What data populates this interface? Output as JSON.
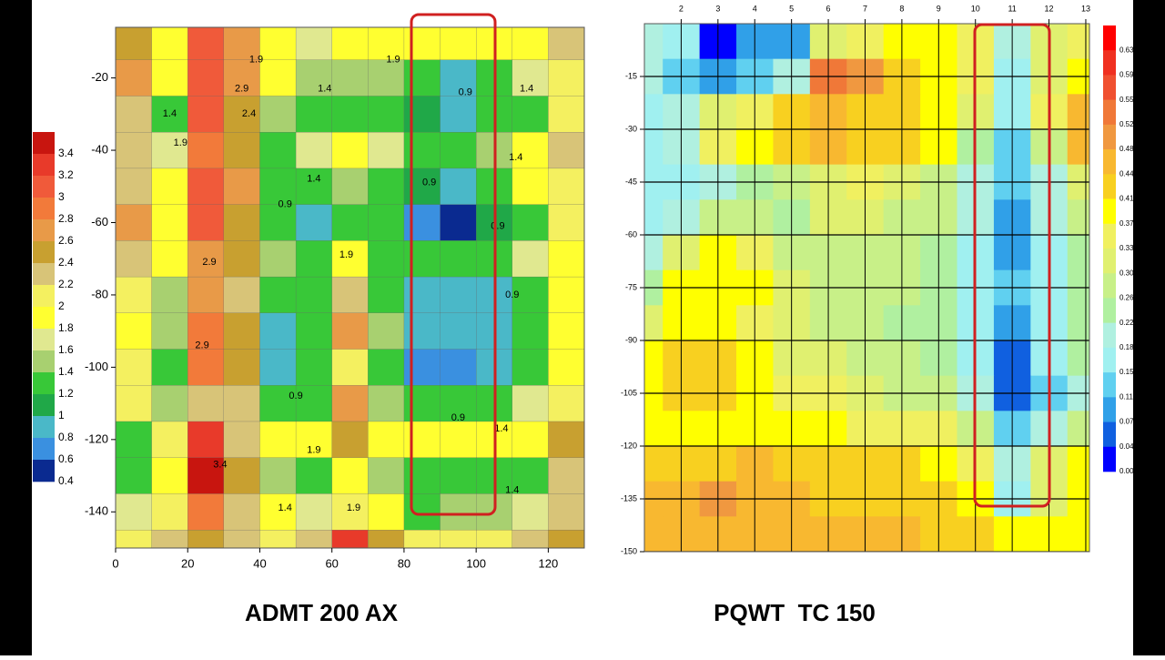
{
  "chart_data": [
    {
      "type": "contour",
      "title": "ADMT 200 AX",
      "xlim": [
        0,
        130
      ],
      "ylim": [
        -150,
        -6
      ],
      "xticks": [
        0,
        20,
        40,
        60,
        80,
        100,
        120
      ],
      "yticks": [
        -20,
        -40,
        -60,
        -80,
        -100,
        -120,
        -140
      ],
      "x": [
        5,
        15,
        25,
        35,
        45,
        55,
        65,
        75,
        85,
        95,
        105,
        115,
        125
      ],
      "y": [
        -10,
        -20,
        -30,
        -40,
        -50,
        -60,
        -70,
        -80,
        -90,
        -100,
        -110,
        -120,
        -130,
        -140,
        -150
      ],
      "z": [
        [
          2.4,
          1.9,
          3.0,
          2.6,
          1.9,
          1.7,
          1.9,
          1.9,
          1.9,
          1.8,
          1.9,
          1.8,
          2.2
        ],
        [
          2.6,
          1.8,
          3.1,
          2.6,
          1.8,
          1.4,
          1.4,
          1.4,
          1.2,
          0.8,
          1.3,
          1.6,
          2.0
        ],
        [
          2.2,
          1.3,
          3.0,
          2.5,
          1.4,
          1.2,
          1.2,
          1.2,
          1.0,
          0.9,
          1.3,
          1.3,
          2.0
        ],
        [
          2.2,
          1.6,
          2.9,
          2.4,
          1.3,
          1.6,
          1.9,
          1.6,
          1.3,
          1.2,
          1.4,
          1.9,
          2.3
        ],
        [
          2.3,
          1.8,
          3.0,
          2.6,
          1.2,
          1.3,
          1.5,
          1.3,
          1.0,
          0.9,
          1.2,
          1.8,
          2.1
        ],
        [
          2.6,
          1.9,
          3.1,
          2.5,
          1.2,
          0.8,
          1.3,
          1.2,
          0.6,
          0.5,
          1.0,
          1.3,
          2.0
        ],
        [
          2.2,
          1.8,
          2.6,
          2.4,
          1.4,
          1.3,
          1.9,
          1.3,
          1.2,
          1.2,
          1.2,
          1.6,
          1.9
        ],
        [
          2.0,
          1.5,
          2.6,
          2.2,
          1.2,
          1.2,
          2.2,
          1.3,
          0.9,
          0.8,
          0.9,
          1.3,
          1.8
        ],
        [
          1.9,
          1.4,
          2.9,
          2.5,
          0.9,
          1.3,
          2.7,
          1.4,
          0.9,
          0.8,
          0.8,
          1.2,
          1.9
        ],
        [
          2.0,
          1.3,
          2.8,
          2.4,
          0.8,
          1.2,
          2.0,
          1.3,
          0.7,
          0.6,
          0.9,
          1.3,
          1.9
        ],
        [
          2.1,
          1.5,
          2.3,
          2.2,
          1.2,
          1.3,
          2.7,
          1.4,
          1.2,
          1.2,
          1.3,
          1.6,
          2.0
        ],
        [
          1.3,
          2.0,
          3.3,
          2.3,
          1.9,
          1.9,
          2.4,
          1.9,
          1.8,
          1.8,
          1.8,
          1.9,
          2.5
        ],
        [
          1.2,
          1.9,
          3.4,
          2.4,
          1.5,
          1.3,
          1.8,
          1.4,
          1.3,
          1.3,
          1.3,
          1.2,
          2.2
        ],
        [
          1.7,
          2.0,
          2.9,
          2.2,
          1.8,
          1.6,
          2.0,
          1.8,
          1.3,
          1.4,
          1.4,
          1.6,
          2.3
        ],
        [
          2.0,
          2.2,
          2.5,
          2.3,
          2.0,
          2.2,
          3.3,
          2.5,
          2.0,
          2.0,
          2.0,
          2.2,
          2.4
        ]
      ],
      "colorbar": {
        "ticks": [
          3.4,
          3.2,
          3,
          2.8,
          2.6,
          2.4,
          2.2,
          2,
          1.8,
          1.6,
          1.4,
          1.2,
          1,
          0.8,
          0.6,
          0.4
        ],
        "colors": [
          "#c8150f",
          "#e83a2a",
          "#f05a3a",
          "#f27a3a",
          "#e89a48",
          "#c8a030",
          "#d8c478",
          "#f4f060",
          "#ffff30",
          "#e0e890",
          "#a8d070",
          "#38c838",
          "#20a848",
          "#4ab8c8",
          "#3a90e0",
          "#0a2a90"
        ]
      },
      "annotations": [
        {
          "text": "1.9",
          "x": 39,
          "y": -15
        },
        {
          "text": "1.9",
          "x": 77,
          "y": -15
        },
        {
          "text": "1.4",
          "x": 58,
          "y": -23
        },
        {
          "text": "0.9",
          "x": 97,
          "y": -24
        },
        {
          "text": "1.4",
          "x": 114,
          "y": -23
        },
        {
          "text": "1.4",
          "x": 15,
          "y": -30
        },
        {
          "text": "1.9",
          "x": 18,
          "y": -38
        },
        {
          "text": "2.9",
          "x": 35,
          "y": -23
        },
        {
          "text": "2.4",
          "x": 37,
          "y": -30
        },
        {
          "text": "1.4",
          "x": 111,
          "y": -42
        },
        {
          "text": "1.4",
          "x": 55,
          "y": -48
        },
        {
          "text": "0.9",
          "x": 87,
          "y": -49
        },
        {
          "text": "0.9",
          "x": 47,
          "y": -55
        },
        {
          "text": "0.9",
          "x": 106,
          "y": -61
        },
        {
          "text": "2.9",
          "x": 26,
          "y": -71
        },
        {
          "text": "0.9",
          "x": 110,
          "y": -80
        },
        {
          "text": "1.9",
          "x": 64,
          "y": -69
        },
        {
          "text": "2.9",
          "x": 24,
          "y": -94
        },
        {
          "text": "0.9",
          "x": 50,
          "y": -108
        },
        {
          "text": "0.9",
          "x": 95,
          "y": -114
        },
        {
          "text": "1.4",
          "x": 107,
          "y": -117
        },
        {
          "text": "1.9",
          "x": 55,
          "y": -123
        },
        {
          "text": "1.4",
          "x": 47,
          "y": -139
        },
        {
          "text": "1.9",
          "x": 66,
          "y": -139
        },
        {
          "text": "1.4",
          "x": 110,
          "y": -134
        },
        {
          "text": "3.4",
          "x": 29,
          "y": -127
        }
      ]
    },
    {
      "type": "contour",
      "title": "PQWT  TC 150",
      "xlim": [
        1,
        13.1
      ],
      "ylim": [
        -150,
        0
      ],
      "grid": true,
      "xticks": [
        2,
        3,
        4,
        5,
        6,
        7,
        8,
        9,
        10,
        11,
        12,
        13
      ],
      "yticks": [
        -15,
        -30,
        -45,
        -60,
        -75,
        -90,
        -105,
        -120,
        -135,
        -150
      ],
      "x": [
        1,
        2,
        3,
        4,
        5,
        6,
        7,
        8,
        9,
        10,
        11,
        12,
        13
      ],
      "y": [
        -5,
        -15,
        -25,
        -35,
        -45,
        -55,
        -65,
        -75,
        -85,
        -95,
        -105,
        -115,
        -125,
        -135,
        -145
      ],
      "z": [
        [
          0.18,
          0.15,
          0.02,
          0.1,
          0.07,
          0.3,
          0.33,
          0.37,
          0.37,
          0.33,
          0.18,
          0.3,
          0.33
        ],
        [
          0.18,
          0.13,
          0.07,
          0.11,
          0.18,
          0.52,
          0.48,
          0.41,
          0.37,
          0.33,
          0.15,
          0.3,
          0.37
        ],
        [
          0.15,
          0.18,
          0.3,
          0.33,
          0.41,
          0.44,
          0.41,
          0.41,
          0.37,
          0.3,
          0.15,
          0.33,
          0.44
        ],
        [
          0.15,
          0.18,
          0.33,
          0.37,
          0.41,
          0.44,
          0.41,
          0.41,
          0.37,
          0.22,
          0.11,
          0.26,
          0.44
        ],
        [
          0.15,
          0.15,
          0.18,
          0.22,
          0.26,
          0.3,
          0.33,
          0.3,
          0.26,
          0.18,
          0.11,
          0.18,
          0.3
        ],
        [
          0.15,
          0.18,
          0.26,
          0.26,
          0.22,
          0.3,
          0.3,
          0.26,
          0.26,
          0.18,
          0.07,
          0.18,
          0.26
        ],
        [
          0.18,
          0.3,
          0.37,
          0.33,
          0.26,
          0.26,
          0.26,
          0.26,
          0.22,
          0.15,
          0.07,
          0.15,
          0.22
        ],
        [
          0.22,
          0.37,
          0.37,
          0.37,
          0.3,
          0.26,
          0.26,
          0.26,
          0.22,
          0.15,
          0.11,
          0.15,
          0.22
        ],
        [
          0.3,
          0.37,
          0.37,
          0.33,
          0.3,
          0.26,
          0.26,
          0.22,
          0.22,
          0.15,
          0.07,
          0.15,
          0.22
        ],
        [
          0.37,
          0.41,
          0.41,
          0.37,
          0.3,
          0.3,
          0.26,
          0.26,
          0.22,
          0.15,
          0.04,
          0.15,
          0.22
        ],
        [
          0.37,
          0.41,
          0.41,
          0.37,
          0.33,
          0.33,
          0.3,
          0.26,
          0.26,
          0.18,
          0.04,
          0.11,
          0.18
        ],
        [
          0.37,
          0.37,
          0.37,
          0.37,
          0.37,
          0.37,
          0.33,
          0.33,
          0.33,
          0.26,
          0.11,
          0.18,
          0.26
        ],
        [
          0.41,
          0.41,
          0.41,
          0.44,
          0.41,
          0.41,
          0.41,
          0.41,
          0.37,
          0.33,
          0.18,
          0.3,
          0.37
        ],
        [
          0.44,
          0.44,
          0.48,
          0.44,
          0.44,
          0.41,
          0.41,
          0.41,
          0.41,
          0.37,
          0.15,
          0.3,
          0.37
        ],
        [
          0.44,
          0.44,
          0.44,
          0.44,
          0.44,
          0.44,
          0.44,
          0.44,
          0.41,
          0.41,
          0.37,
          0.37,
          0.37
        ]
      ],
      "colorbar": {
        "ticks": [
          0.63,
          0.59,
          0.55,
          0.52,
          0.48,
          0.44,
          0.41,
          0.37,
          0.33,
          {
            "value": 0.3,
            "label": "0.30"
          },
          0.26,
          0.22,
          0.18,
          0.15,
          0.11,
          0.07,
          0.04,
          {
            "value": 0,
            "label": "0.00"
          }
        ],
        "colors": [
          "#ff0000",
          "#f03020",
          "#f05030",
          "#f07838",
          "#f09840",
          "#f8b830",
          "#f8d020",
          "#ffff00",
          "#f0f060",
          "#e0f070",
          "#c8f088",
          "#b0f0a0",
          "#b0f0e0",
          "#a0f0f0",
          "#60d0f0",
          "#30a0e8",
          "#1060e0",
          "#0000ff"
        ]
      }
    }
  ]
}
